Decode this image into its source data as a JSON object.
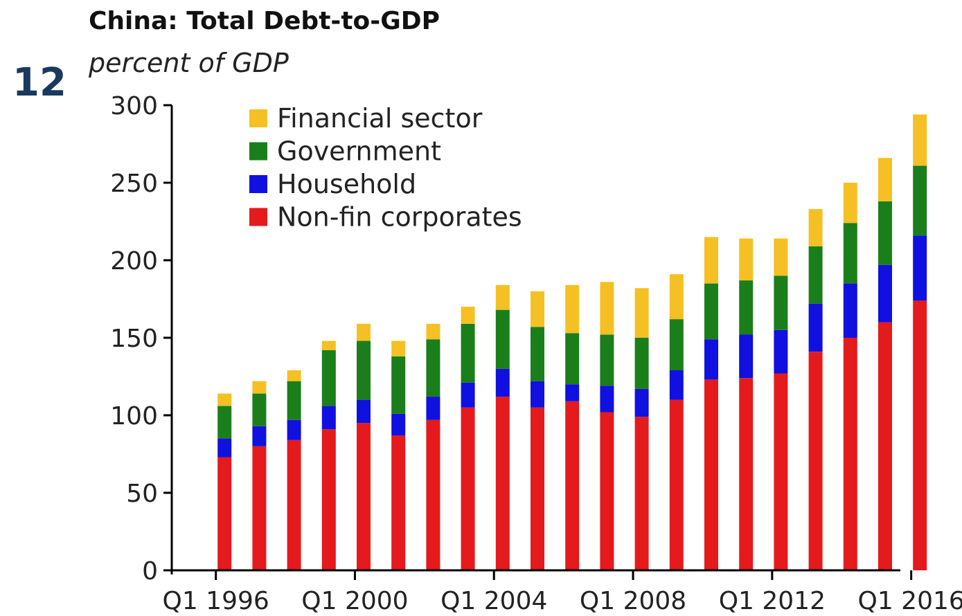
{
  "figure_number": "12",
  "chart_data": {
    "type": "bar",
    "stacked": true,
    "title": "China: Total Debt-to-GDP",
    "subtitle": "percent of GDP",
    "xlabel": "",
    "ylabel": "",
    "ylim": [
      0,
      300
    ],
    "yticks": [
      0,
      50,
      100,
      150,
      200,
      250,
      300
    ],
    "xtick_labels": [
      "Q1 1996",
      "Q1 2000",
      "Q1 2004",
      "Q1 2008",
      "Q1 2012",
      "Q1 2016"
    ],
    "xtick_positions": [
      1995.75,
      1999.75,
      2003.75,
      2007.75,
      2011.75,
      2015.75
    ],
    "x": [
      1996,
      1997,
      1998,
      1999,
      2000,
      2001,
      2002,
      2003,
      2004,
      2005,
      2006,
      2007,
      2008,
      2009,
      2010,
      2011,
      2012,
      2013,
      2014,
      2015,
      2016
    ],
    "series": [
      {
        "name": "Non-fin corporates",
        "color": "#e41a1c",
        "values": [
          73,
          80,
          84,
          91,
          95,
          87,
          97,
          105,
          112,
          105,
          109,
          102,
          99,
          110,
          123,
          124,
          127,
          141,
          150,
          160,
          174
        ]
      },
      {
        "name": "Household",
        "color": "#1010e0",
        "values": [
          12,
          13,
          13,
          15,
          15,
          14,
          15,
          16,
          18,
          17,
          11,
          17,
          18,
          19,
          26,
          28,
          28,
          31,
          35,
          37,
          42
        ]
      },
      {
        "name": "Government",
        "color": "#1a7f1a",
        "values": [
          21,
          21,
          25,
          36,
          38,
          37,
          37,
          38,
          38,
          35,
          33,
          33,
          33,
          33,
          36,
          35,
          35,
          37,
          39,
          41,
          45
        ]
      },
      {
        "name": "Financial sector",
        "color": "#f5c023",
        "values": [
          8,
          8,
          7,
          6,
          11,
          10,
          10,
          11,
          16,
          23,
          31,
          34,
          32,
          29,
          30,
          27,
          24,
          24,
          26,
          28,
          33
        ]
      }
    ],
    "legend": {
      "position": "top-left",
      "order": [
        "Financial sector",
        "Government",
        "Household",
        "Non-fin corporates"
      ]
    },
    "grid": false
  }
}
